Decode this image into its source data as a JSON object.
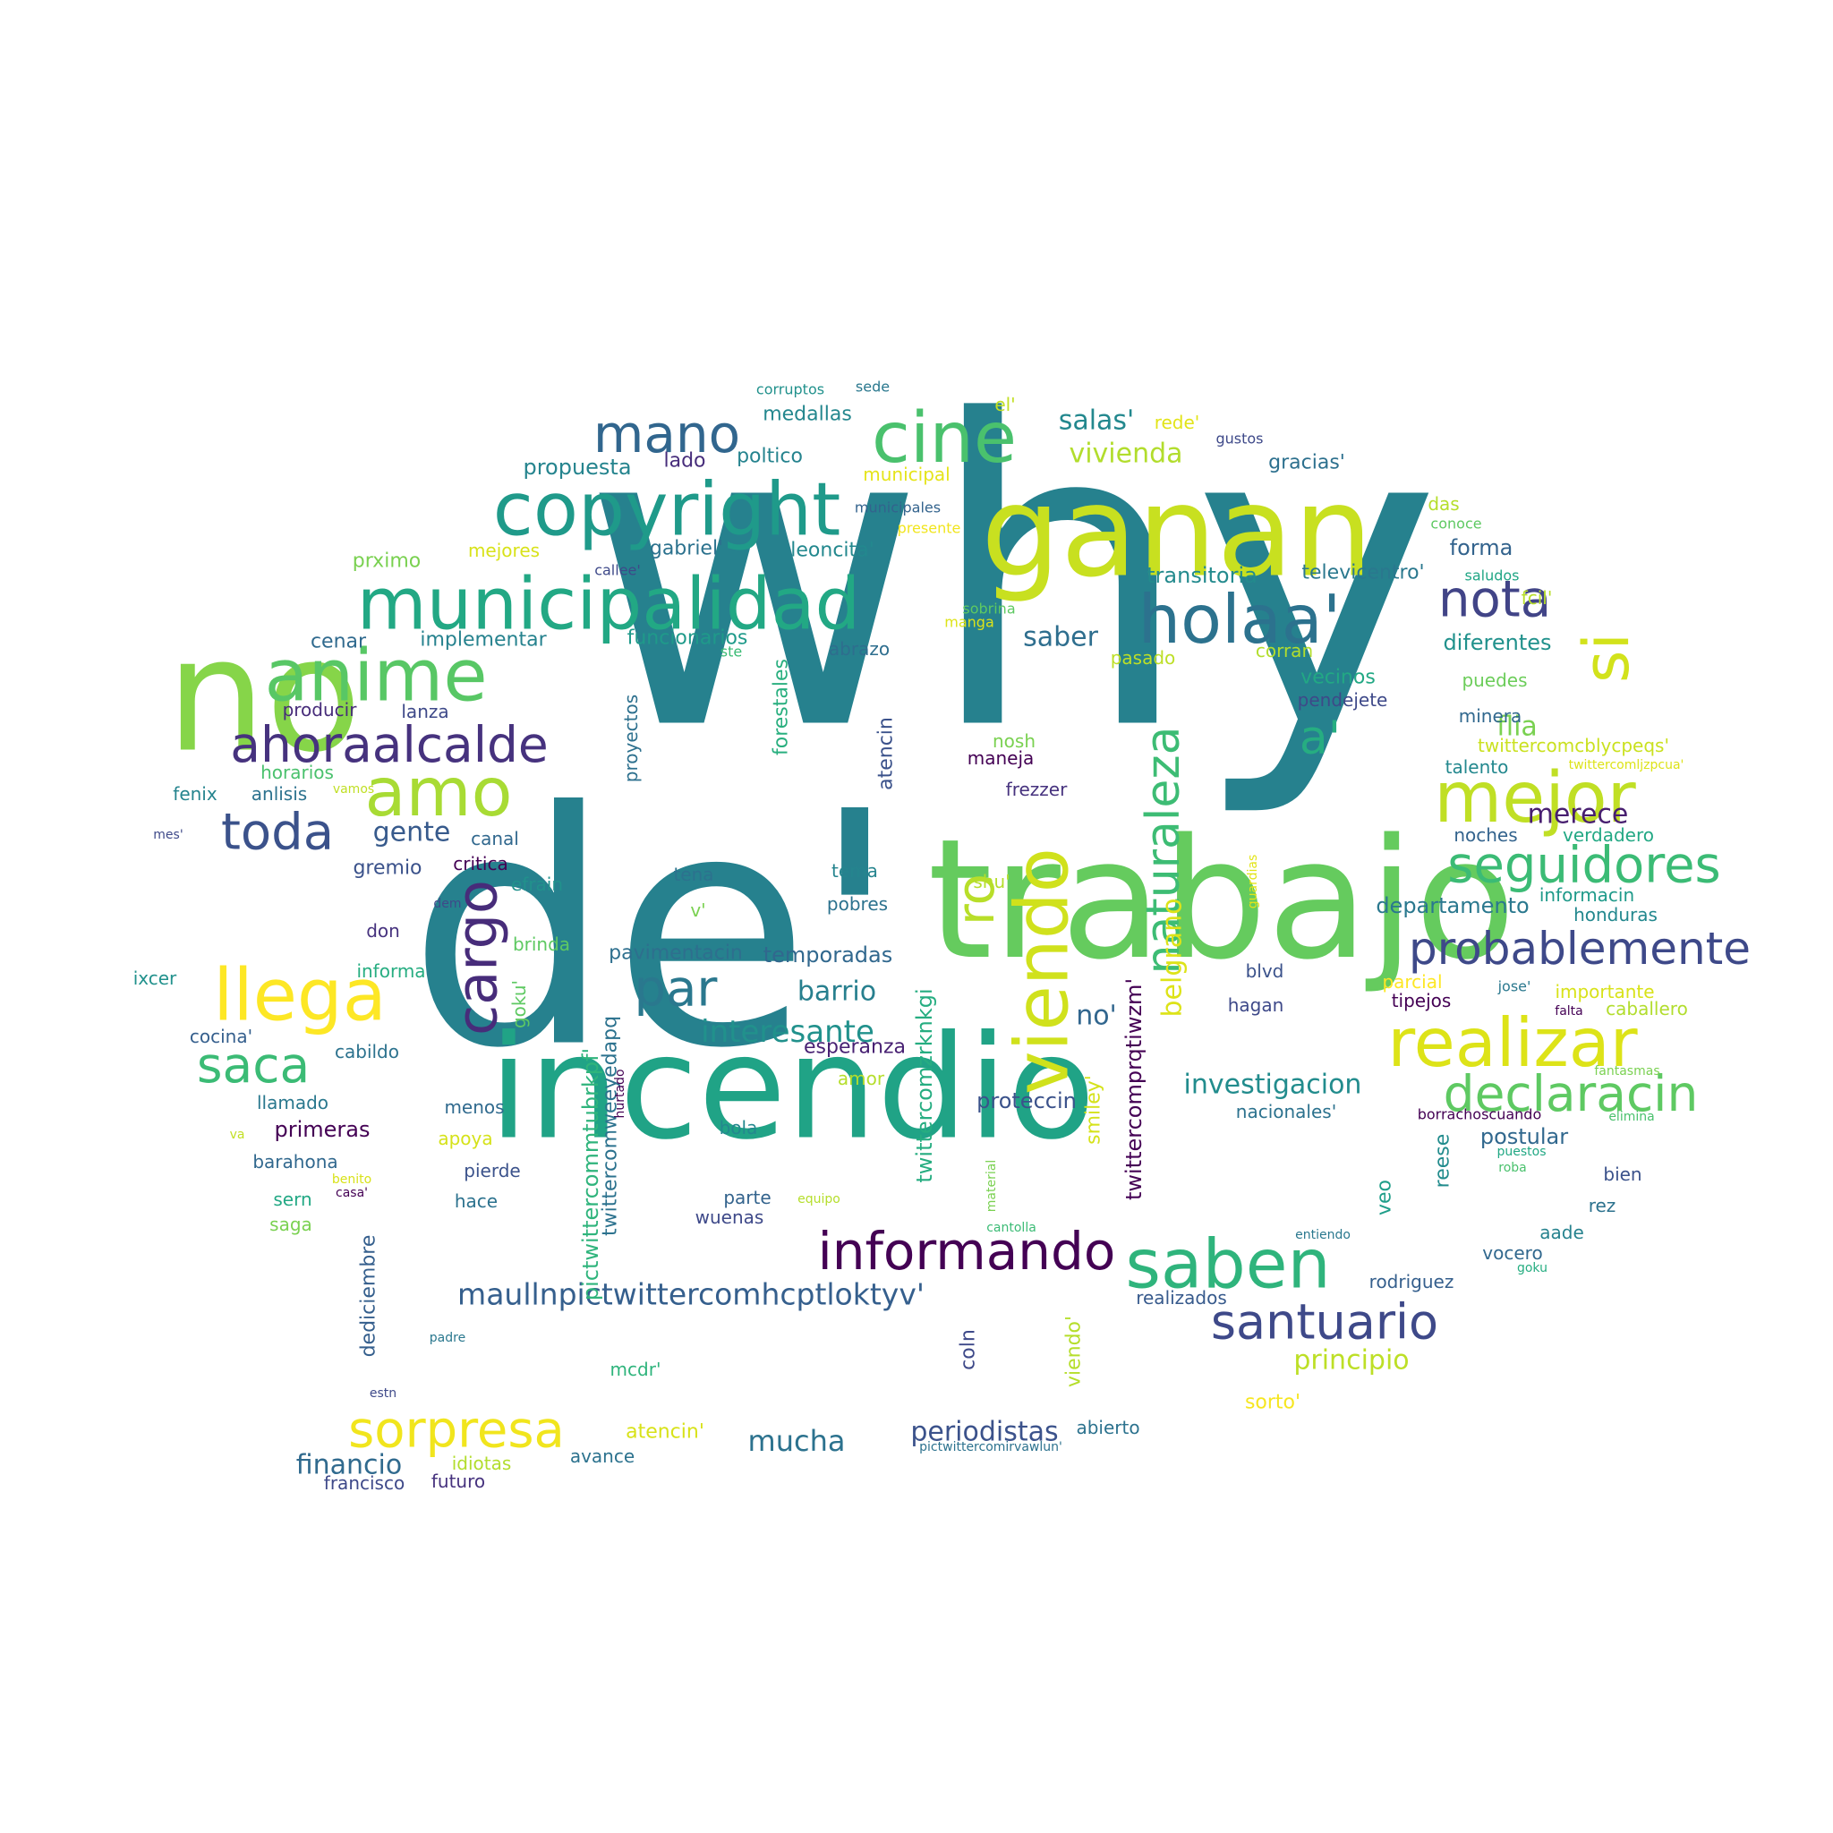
{
  "wordcloud": {
    "words": [
      {
        "text": "why",
        "color": "#26818e"
      },
      {
        "text": "de'",
        "color": "#26818e"
      },
      {
        "text": "no",
        "color": "#86d549"
      },
      {
        "text": "trabajo",
        "color": "#65cb5e"
      },
      {
        "text": "incendio",
        "color": "#20a386"
      },
      {
        "text": "ganan",
        "color": "#c8e020"
      },
      {
        "text": "copyright",
        "color": "#1f9a8a"
      },
      {
        "text": "municipalidad",
        "color": "#22a884"
      },
      {
        "text": "anime",
        "color": "#58c765"
      },
      {
        "text": "holaa'",
        "color": "#2c728e"
      },
      {
        "text": "cine",
        "color": "#4ac16d"
      },
      {
        "text": "mano",
        "color": "#31668e"
      },
      {
        "text": "amo",
        "color": "#a8db34"
      },
      {
        "text": "ahoraalcalde",
        "color": "#46327e"
      },
      {
        "text": "llega",
        "color": "#fde725"
      },
      {
        "text": "toda",
        "color": "#3b528b"
      },
      {
        "text": "cargo",
        "color": "#472c7a"
      },
      {
        "text": "par",
        "color": "#2a788e"
      },
      {
        "text": "saca",
        "color": "#3bbb75"
      },
      {
        "text": "sorpresa",
        "color": "#f1e51d"
      },
      {
        "text": "viendo",
        "color": "#d0e11c"
      },
      {
        "text": "ro",
        "color": "#b8de29"
      },
      {
        "text": "naturaleza",
        "color": "#3dbc74"
      },
      {
        "text": "nota",
        "color": "#414487"
      },
      {
        "text": "si",
        "color": "#d2e21b"
      },
      {
        "text": "mejor",
        "color": "#c0df25"
      },
      {
        "text": "a'",
        "color": "#26ad81"
      },
      {
        "text": "seguidores",
        "color": "#3bbb75"
      },
      {
        "text": "probablemente",
        "color": "#3e4989"
      },
      {
        "text": "realizar",
        "color": "#dde318"
      },
      {
        "text": "declaracin",
        "color": "#5ec962"
      },
      {
        "text": "informando",
        "color": "#440154"
      },
      {
        "text": "saben",
        "color": "#2fb47c"
      },
      {
        "text": "santuario",
        "color": "#3e4989"
      },
      {
        "text": "maullnpictwittercomhcptloktyv'",
        "color": "#355f8d"
      },
      {
        "text": "interesante",
        "color": "#21918c"
      },
      {
        "text": "investigacion",
        "color": "#228c8d"
      },
      {
        "text": "belgrano",
        "color": "#dde318"
      },
      {
        "text": "mucha",
        "color": "#2c728e"
      },
      {
        "text": "periodistas",
        "color": "#3b528b"
      },
      {
        "text": "financio",
        "color": "#306a8e"
      },
      {
        "text": "principio",
        "color": "#bddf26"
      },
      {
        "text": "barrio",
        "color": "#277f8e"
      },
      {
        "text": "gente",
        "color": "#375a8c"
      },
      {
        "text": "saber",
        "color": "#2e6e8e"
      },
      {
        "text": "flia",
        "color": "#7ad151"
      },
      {
        "text": "merece",
        "color": "#481f70"
      },
      {
        "text": "salas'",
        "color": "#23888e"
      },
      {
        "text": "vivienda",
        "color": "#b2dd2d"
      },
      {
        "text": "medallas",
        "color": "#24878e"
      },
      {
        "text": "propuesta",
        "color": "#25848e"
      },
      {
        "text": "forma",
        "color": "#33638d"
      },
      {
        "text": "transitoria",
        "color": "#238a8d"
      },
      {
        "text": "diferentes",
        "color": "#21918c"
      },
      {
        "text": "departamento",
        "color": "#2a788e"
      },
      {
        "text": "no'",
        "color": "#31668e"
      },
      {
        "text": "temporadas",
        "color": "#31688e"
      },
      {
        "text": "pavimentacin",
        "color": "#2e6f8e"
      },
      {
        "text": "esperanza",
        "color": "#482173"
      },
      {
        "text": "proteccin",
        "color": "#3b528b"
      },
      {
        "text": "primeras",
        "color": "#440154"
      },
      {
        "text": "postular",
        "color": "#31688e"
      },
      {
        "text": "sorto'",
        "color": "#f6e620"
      },
      {
        "text": "atencin'",
        "color": "#d8e219"
      },
      {
        "text": "pictwittercommtubrkpf'",
        "color": "#2fb47c"
      },
      {
        "text": "twittercomweeyedapq",
        "color": "#2c728e"
      },
      {
        "text": "twittercomzrknkgi",
        "color": "#26ad81"
      },
      {
        "text": "twittercomprqtiwzm'",
        "color": "#440154"
      },
      {
        "text": "forestales",
        "color": "#29af7f"
      },
      {
        "text": "proyectos",
        "color": "#2d708e"
      },
      {
        "text": "atencin",
        "color": "#3b528b"
      },
      {
        "text": "dediciembre",
        "color": "#355f8d"
      },
      {
        "text": "coln",
        "color": "#3e4989"
      },
      {
        "text": "viendo'",
        "color": "#b5de2b"
      },
      {
        "text": "smiley'",
        "color": "#d5e21a"
      },
      {
        "text": "reese",
        "color": "#228c8d"
      },
      {
        "text": "veo",
        "color": "#1f9e89"
      },
      {
        "text": "corruptos",
        "color": "#21918c"
      },
      {
        "text": "sede",
        "color": "#2a788e"
      },
      {
        "text": "el'",
        "color": "#c2df23"
      },
      {
        "text": "rede'",
        "color": "#e2e418"
      },
      {
        "text": "gustos",
        "color": "#3e4989"
      },
      {
        "text": "lado",
        "color": "#472d7b"
      },
      {
        "text": "poltico",
        "color": "#25838e"
      },
      {
        "text": "gracias'",
        "color": "#2d708e"
      },
      {
        "text": "municipal",
        "color": "#e5e419"
      },
      {
        "text": "municipales",
        "color": "#33638d"
      },
      {
        "text": "das",
        "color": "#b5de2b"
      },
      {
        "text": "conoce",
        "color": "#5ec962"
      },
      {
        "text": "presente",
        "color": "#f1e51d"
      },
      {
        "text": "prximo",
        "color": "#7ad151"
      },
      {
        "text": "mejores",
        "color": "#d8e219"
      },
      {
        "text": "gabriel'",
        "color": "#2c728e"
      },
      {
        "text": "leoncita'",
        "color": "#23888e"
      },
      {
        "text": "callee'",
        "color": "#3e4989"
      },
      {
        "text": "televicentro'",
        "color": "#2a788e"
      },
      {
        "text": "saludos",
        "color": "#21a685"
      },
      {
        "text": "fcil'",
        "color": "#b8de29"
      },
      {
        "text": "sobrina",
        "color": "#5ec962"
      },
      {
        "text": "manga",
        "color": "#dde318"
      },
      {
        "text": "cenar",
        "color": "#306a8e"
      },
      {
        "text": "implementar",
        "color": "#26828e"
      },
      {
        "text": "funcionarios",
        "color": "#1f9a8a"
      },
      {
        "text": "ste",
        "color": "#3bbb75"
      },
      {
        "text": "abrazo",
        "color": "#2e6e8e"
      },
      {
        "text": "pasado",
        "color": "#bddf26"
      },
      {
        "text": "corran",
        "color": "#b2dd2d"
      },
      {
        "text": "vecinos",
        "color": "#22a884"
      },
      {
        "text": "puedes",
        "color": "#6ccd5a"
      },
      {
        "text": "producir",
        "color": "#472c7a"
      },
      {
        "text": "lanza",
        "color": "#3e4989"
      },
      {
        "text": "pendejete",
        "color": "#3e4989"
      },
      {
        "text": "minera",
        "color": "#31688e"
      },
      {
        "text": "nosh",
        "color": "#7ad151"
      },
      {
        "text": "twittercomcblycpeqs'",
        "color": "#cae11f"
      },
      {
        "text": "horarios",
        "color": "#4ac16d"
      },
      {
        "text": "fenix",
        "color": "#25848e"
      },
      {
        "text": "anlisis",
        "color": "#2c728e"
      },
      {
        "text": "vamos",
        "color": "#c0df25"
      },
      {
        "text": "maneja",
        "color": "#440154"
      },
      {
        "text": "frezzer",
        "color": "#46327e"
      },
      {
        "text": "talento",
        "color": "#23888e"
      },
      {
        "text": "twittercomljzpcua'",
        "color": "#dde318"
      },
      {
        "text": "mes'",
        "color": "#3e4989"
      },
      {
        "text": "canal",
        "color": "#31688e"
      },
      {
        "text": "noches",
        "color": "#33638d"
      },
      {
        "text": "verdadero",
        "color": "#22a884"
      },
      {
        "text": "gremio",
        "color": "#3b528b"
      },
      {
        "text": "critica",
        "color": "#440154"
      },
      {
        "text": "efrain",
        "color": "#21918c"
      },
      {
        "text": "tena",
        "color": "#2c728e"
      },
      {
        "text": "tema",
        "color": "#25848e"
      },
      {
        "text": "shu'",
        "color": "#b5de2b"
      },
      {
        "text": "guardias",
        "color": "#e2e418"
      },
      {
        "text": "informacin",
        "color": "#1f9a8a"
      },
      {
        "text": "dem",
        "color": "#3e4989"
      },
      {
        "text": "v'",
        "color": "#7ad151"
      },
      {
        "text": "pobres",
        "color": "#2c728e"
      },
      {
        "text": "honduras",
        "color": "#23888e"
      },
      {
        "text": "don",
        "color": "#46327e"
      },
      {
        "text": "brinda",
        "color": "#5ec962"
      },
      {
        "text": "blvd",
        "color": "#3b528b"
      },
      {
        "text": "parcial",
        "color": "#fde725"
      },
      {
        "text": "importante",
        "color": "#d8e219"
      },
      {
        "text": "ixcer",
        "color": "#21918c"
      },
      {
        "text": "informa",
        "color": "#26ad81"
      },
      {
        "text": "jose'",
        "color": "#2a788e"
      },
      {
        "text": "hagan",
        "color": "#3e4989"
      },
      {
        "text": "tipejos",
        "color": "#440154"
      },
      {
        "text": "falta",
        "color": "#440154"
      },
      {
        "text": "caballero",
        "color": "#b2dd2d"
      },
      {
        "text": "cocina'",
        "color": "#355f8d"
      },
      {
        "text": "goku'",
        "color": "#5ec962"
      },
      {
        "text": "cabildo",
        "color": "#2c728e"
      },
      {
        "text": "amor",
        "color": "#b5de2b"
      },
      {
        "text": "hurtado",
        "color": "#440154"
      },
      {
        "text": "fantasmas",
        "color": "#7ad151"
      },
      {
        "text": "llamado",
        "color": "#2a788e"
      },
      {
        "text": "menos",
        "color": "#306a8e"
      },
      {
        "text": "bola",
        "color": "#23888e"
      },
      {
        "text": "nacionales'",
        "color": "#2c728e"
      },
      {
        "text": "borrachoscuando",
        "color": "#440154"
      },
      {
        "text": "elimina",
        "color": "#4ac16d"
      },
      {
        "text": "va",
        "color": "#c2df23"
      },
      {
        "text": "apoya",
        "color": "#d5e21a"
      },
      {
        "text": "barahona",
        "color": "#31688e"
      },
      {
        "text": "benito",
        "color": "#d8e219"
      },
      {
        "text": "pierde",
        "color": "#3b528b"
      },
      {
        "text": "material",
        "color": "#7ad151"
      },
      {
        "text": "puestos",
        "color": "#22a884"
      },
      {
        "text": "roba",
        "color": "#4ac16d"
      },
      {
        "text": "bien",
        "color": "#3b528b"
      },
      {
        "text": "casa'",
        "color": "#440154"
      },
      {
        "text": "sern",
        "color": "#22a884"
      },
      {
        "text": "hace",
        "color": "#2c728e"
      },
      {
        "text": "parte",
        "color": "#33638d"
      },
      {
        "text": "equipo",
        "color": "#b5de2b"
      },
      {
        "text": "rez",
        "color": "#2c728e"
      },
      {
        "text": "saga",
        "color": "#7ad151"
      },
      {
        "text": "wuenas",
        "color": "#3e4989"
      },
      {
        "text": "cantolla",
        "color": "#3bbb75"
      },
      {
        "text": "entiendo",
        "color": "#2a788e"
      },
      {
        "text": "aade",
        "color": "#26828e"
      },
      {
        "text": "vocero",
        "color": "#31688e"
      },
      {
        "text": "goku",
        "color": "#26ad81"
      },
      {
        "text": "rodriguez",
        "color": "#355f8d"
      },
      {
        "text": "realizados",
        "color": "#375a8c"
      },
      {
        "text": "padre",
        "color": "#2a788e"
      },
      {
        "text": "mcdr'",
        "color": "#2fb47c"
      },
      {
        "text": "estn",
        "color": "#3e4989"
      },
      {
        "text": "abierto",
        "color": "#2c728e"
      },
      {
        "text": "idiotas",
        "color": "#b2dd2d"
      },
      {
        "text": "avance",
        "color": "#2c728e"
      },
      {
        "text": "pictwittercomirvawlun'",
        "color": "#2c728e"
      },
      {
        "text": "francisco",
        "color": "#3e4989"
      },
      {
        "text": "futuro",
        "color": "#46327e"
      }
    ]
  }
}
